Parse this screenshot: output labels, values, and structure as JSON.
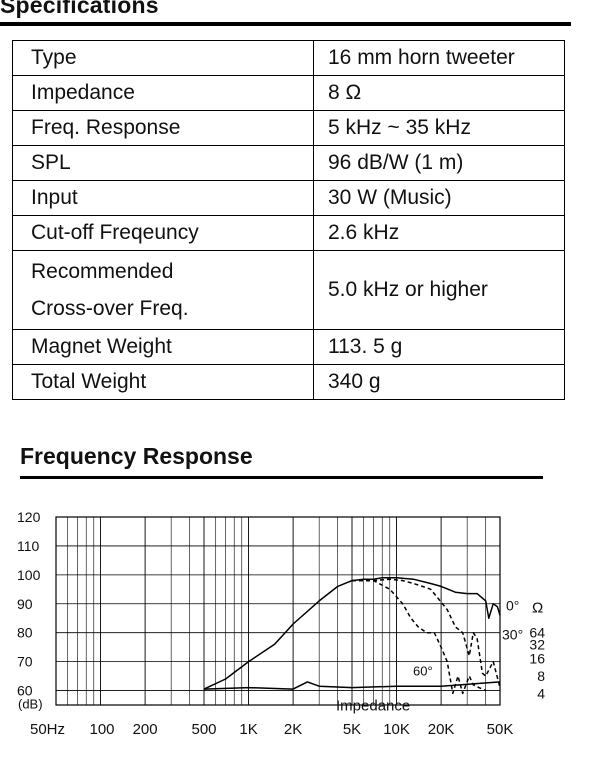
{
  "specifications": {
    "title": "Specifications",
    "rows": [
      {
        "label": "Type",
        "value": "16 mm horn tweeter"
      },
      {
        "label": "Impedance",
        "value": "8 Ω"
      },
      {
        "label": "Freq. Response",
        "value": "5 kHz ~ 35 kHz"
      },
      {
        "label": "SPL",
        "value": "96 dB/W (1 m)"
      },
      {
        "label": "Input",
        "value": "30 W (Music)"
      },
      {
        "label": "Cut-off Freqeuncy",
        "value": "2.6 kHz"
      },
      {
        "label_line1": "Recommended",
        "label_line2": "Cross-over Freq.",
        "value": "5.0 kHz or higher"
      },
      {
        "label": "Magnet Weight",
        "value": "113. 5 g"
      },
      {
        "label": "Total Weight",
        "value": "340 g"
      }
    ]
  },
  "frequency_response": {
    "title": "Frequency Response"
  },
  "chart_data": {
    "type": "line",
    "xscale": "log",
    "xlim": [
      50,
      50000
    ],
    "ylim": [
      55,
      120
    ],
    "x_tick_labels": [
      "50Hz",
      "100",
      "200",
      "500",
      "1K",
      "2K",
      "5K",
      "10K",
      "20K",
      "50K"
    ],
    "x_tick_values": [
      50,
      100,
      200,
      500,
      1000,
      2000,
      5000,
      10000,
      20000,
      50000
    ],
    "y_tick_labels": [
      "120",
      "110",
      "100",
      "90",
      "80",
      "70",
      "60"
    ],
    "y_tick_values": [
      120,
      110,
      100,
      90,
      80,
      70,
      60
    ],
    "y_unit_label": "(dB)",
    "impedance_axis": {
      "unit": "Ω",
      "tick_labels": [
        "64",
        "32",
        "16",
        "8",
        "4"
      ],
      "tick_values": [
        64,
        32,
        16,
        8,
        4
      ]
    },
    "grid": true,
    "annotations": [
      "0°",
      "30°",
      "60°",
      "Impedance"
    ],
    "series": [
      {
        "name": "0°",
        "style": "solid",
        "x": [
          500,
          700,
          1000,
          1500,
          2000,
          3000,
          4000,
          5000,
          6000,
          7000,
          8000,
          10000,
          13000,
          17000,
          20000,
          25000,
          30000,
          35000,
          40000,
          42000,
          45000,
          48000,
          50000
        ],
        "y": [
          60.5,
          64,
          70,
          76,
          83,
          91,
          96,
          98,
          98.5,
          98.5,
          99,
          99,
          98.5,
          97,
          96,
          94,
          93.5,
          93.5,
          91,
          85,
          90,
          89,
          86
        ]
      },
      {
        "name": "30°",
        "style": "dashed",
        "x": [
          5000,
          7000,
          9000,
          11000,
          13000,
          15000,
          17000,
          19000,
          22000,
          25000,
          28000,
          31000,
          33000,
          35000,
          38000,
          40000,
          45000,
          50000
        ],
        "y": [
          98,
          98,
          98.5,
          98,
          97,
          96,
          95,
          92,
          88,
          82,
          80,
          72,
          80,
          78,
          66,
          65,
          70,
          61
        ]
      },
      {
        "name": "60°",
        "style": "dashed",
        "x": [
          5000,
          7000,
          9000,
          11000,
          12500,
          14000,
          16000,
          18000,
          20000,
          22000,
          24000,
          26000,
          28000,
          31000,
          33000,
          36000,
          40000
        ],
        "y": [
          98,
          98,
          95,
          90,
          85,
          82,
          80,
          80,
          75,
          70,
          59,
          65,
          59,
          65,
          62,
          61,
          60
        ]
      },
      {
        "name": "Impedance",
        "style": "solid",
        "x": [
          500,
          1000,
          2000,
          2500,
          3000,
          5000,
          10000,
          20000,
          50000
        ],
        "y": [
          60.5,
          61,
          60.5,
          63,
          61.5,
          61,
          61.5,
          61.5,
          63
        ]
      }
    ]
  }
}
